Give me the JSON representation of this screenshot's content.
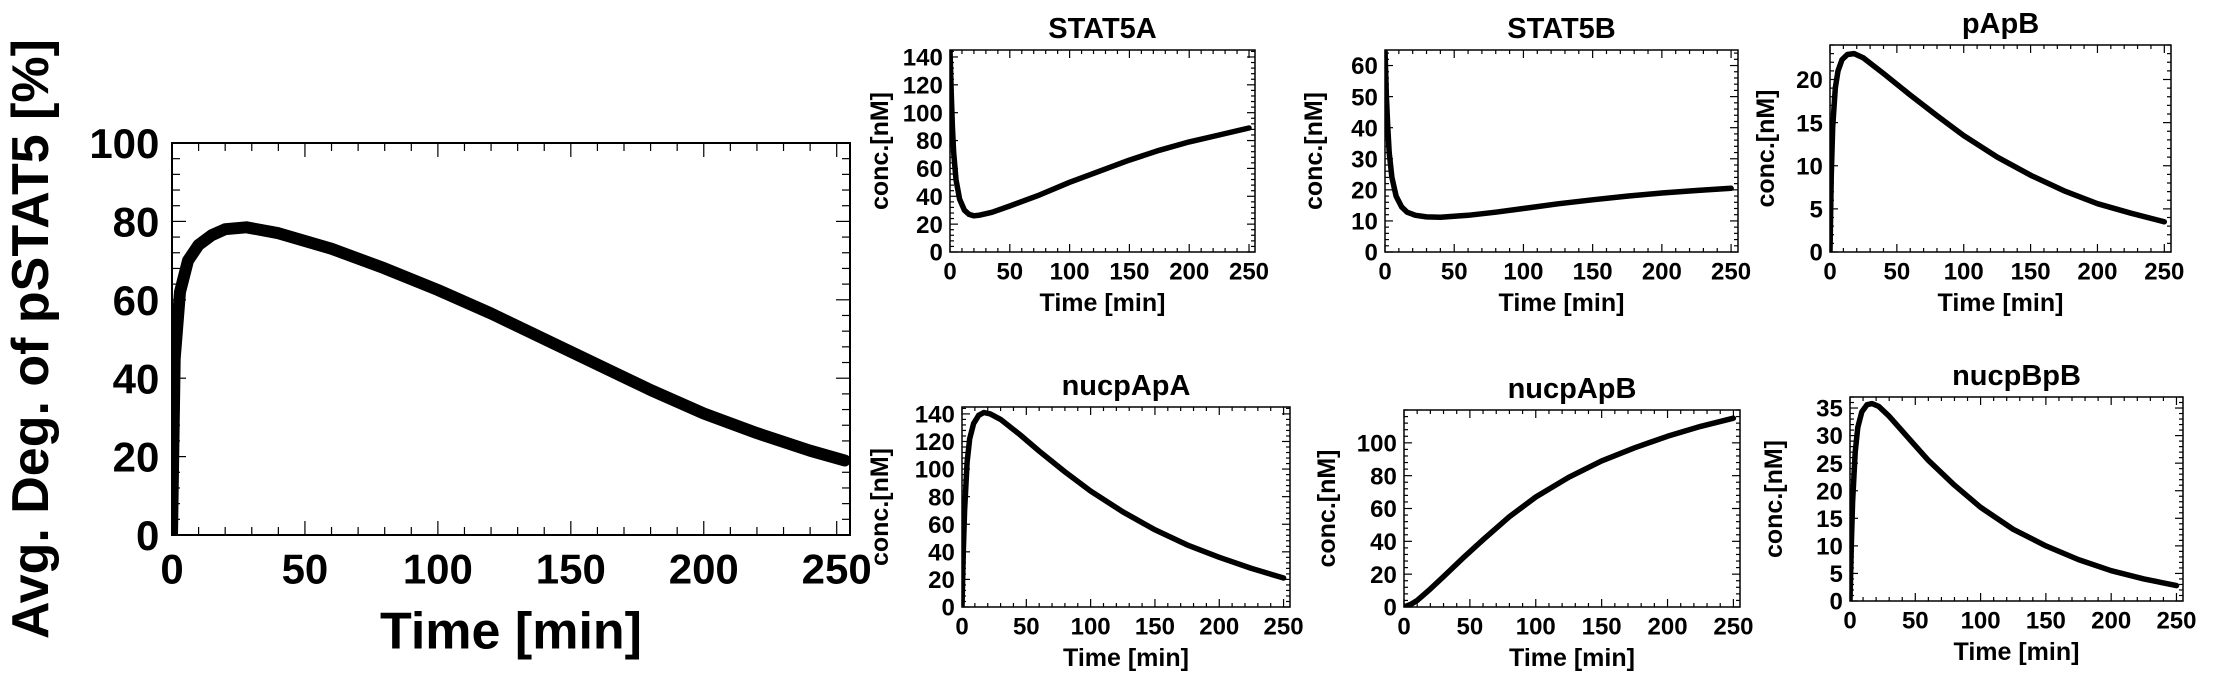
{
  "chart_data": [
    {
      "id": "main",
      "type": "line",
      "title": "",
      "xlabel": "Time [min]",
      "ylabel": "Avg. Deg. of pSTAT5 [%]",
      "xlim": [
        0,
        255
      ],
      "ylim": [
        0,
        100
      ],
      "xticks": [
        0,
        50,
        100,
        150,
        200,
        250
      ],
      "yticks": [
        0,
        20,
        40,
        60,
        80,
        100
      ],
      "series": [
        {
          "name": "",
          "x": [
            0,
            1,
            3,
            6,
            10,
            15,
            20,
            28,
            40,
            60,
            80,
            100,
            120,
            140,
            160,
            180,
            200,
            220,
            240,
            253
          ],
          "values": [
            0,
            45,
            62,
            70,
            74,
            76.5,
            78,
            78.5,
            77,
            73,
            68,
            62.5,
            56.5,
            50,
            43.5,
            37,
            31,
            26,
            21.5,
            19
          ]
        }
      ]
    },
    {
      "id": "stat5a",
      "type": "line",
      "title": "STAT5A",
      "xlabel": "Time [min]",
      "ylabel": "conc.[nM]",
      "xlim": [
        0,
        255
      ],
      "ylim": [
        0,
        145
      ],
      "xticks": [
        0,
        50,
        100,
        150,
        200,
        250
      ],
      "yticks": [
        0,
        20,
        40,
        60,
        80,
        100,
        120,
        140
      ],
      "series": [
        {
          "name": "",
          "x": [
            0,
            1,
            2,
            3,
            5,
            8,
            12,
            16,
            20,
            25,
            35,
            50,
            75,
            100,
            125,
            150,
            175,
            200,
            225,
            250
          ],
          "values": [
            145,
            115,
            90,
            72,
            52,
            38,
            30,
            27,
            26,
            26.5,
            28.5,
            33,
            41,
            50,
            58,
            66,
            73,
            79,
            84,
            89
          ]
        }
      ]
    },
    {
      "id": "stat5b",
      "type": "line",
      "title": "STAT5B",
      "xlabel": "Time [min]",
      "ylabel": "conc.[nM]",
      "xlim": [
        0,
        255
      ],
      "ylim": [
        0,
        65
      ],
      "xticks": [
        0,
        50,
        100,
        150,
        200,
        250
      ],
      "yticks": [
        0,
        10,
        20,
        30,
        40,
        50,
        60
      ],
      "series": [
        {
          "name": "",
          "x": [
            0,
            1,
            2,
            3,
            5,
            8,
            12,
            16,
            22,
            30,
            40,
            60,
            80,
            100,
            125,
            150,
            175,
            200,
            225,
            250
          ],
          "values": [
            65,
            50,
            40,
            32,
            24,
            18,
            14.5,
            12.8,
            11.8,
            11.3,
            11.2,
            11.8,
            12.8,
            14,
            15.5,
            16.8,
            18,
            19,
            19.8,
            20.5
          ]
        }
      ]
    },
    {
      "id": "papb",
      "type": "line",
      "title": "pApB",
      "xlabel": "Time [min]",
      "ylabel": "conc.[nM]",
      "xlim": [
        0,
        255
      ],
      "ylim": [
        0,
        24
      ],
      "xticks": [
        0,
        50,
        100,
        150,
        200,
        250
      ],
      "yticks": [
        0,
        5,
        10,
        15,
        20
      ],
      "series": [
        {
          "name": "",
          "x": [
            0,
            1,
            2,
            4,
            6,
            9,
            13,
            18,
            25,
            40,
            60,
            80,
            100,
            125,
            150,
            175,
            200,
            225,
            250
          ],
          "values": [
            0,
            9,
            14.5,
            19,
            21,
            22.3,
            22.9,
            23,
            22.5,
            20.7,
            18.2,
            15.8,
            13.5,
            11,
            8.9,
            7.1,
            5.6,
            4.5,
            3.5
          ]
        }
      ]
    },
    {
      "id": "nucpapa",
      "type": "line",
      "title": "nucpApA",
      "xlabel": "Time [min]",
      "ylabel": "conc.[nM]",
      "xlim": [
        0,
        255
      ],
      "ylim": [
        0,
        145
      ],
      "xticks": [
        0,
        50,
        100,
        150,
        200,
        250
      ],
      "yticks": [
        0,
        20,
        40,
        60,
        80,
        100,
        120,
        140
      ],
      "series": [
        {
          "name": "",
          "x": [
            0,
            1,
            2,
            4,
            6,
            9,
            13,
            17,
            22,
            30,
            45,
            60,
            80,
            100,
            125,
            150,
            175,
            200,
            225,
            250
          ],
          "values": [
            0,
            40,
            70,
            105,
            122,
            133,
            139,
            141,
            140,
            136,
            125,
            113,
            98,
            84,
            69,
            56,
            45,
            36,
            28,
            21
          ]
        }
      ]
    },
    {
      "id": "nucpapb",
      "type": "line",
      "title": "nucpApB",
      "xlabel": "Time [min]",
      "ylabel": "conc.[nM]",
      "xlim": [
        0,
        255
      ],
      "ylim": [
        0,
        120
      ],
      "xticks": [
        0,
        50,
        100,
        150,
        200,
        250
      ],
      "yticks": [
        0,
        20,
        40,
        60,
        80,
        100
      ],
      "series": [
        {
          "name": "",
          "x": [
            0,
            5,
            10,
            20,
            30,
            45,
            60,
            80,
            100,
            125,
            150,
            175,
            200,
            225,
            250
          ],
          "values": [
            0,
            1.5,
            4,
            11,
            18.5,
            30,
            41,
            55,
            67,
            79,
            89,
            97,
            104,
            110,
            115
          ]
        }
      ]
    },
    {
      "id": "nucpbpb",
      "type": "line",
      "title": "nucpBpB",
      "xlabel": "Time [min]",
      "ylabel": "conc.[nM]",
      "xlim": [
        0,
        255
      ],
      "ylim": [
        0,
        37
      ],
      "xticks": [
        0,
        50,
        100,
        150,
        200,
        250
      ],
      "yticks": [
        0,
        5,
        10,
        15,
        20,
        25,
        30,
        35
      ],
      "series": [
        {
          "name": "",
          "x": [
            0,
            1,
            2,
            4,
            6,
            9,
            13,
            17,
            22,
            30,
            45,
            60,
            80,
            100,
            125,
            150,
            175,
            200,
            225,
            250
          ],
          "values": [
            0,
            10,
            18,
            27,
            31.5,
            34.3,
            35.6,
            35.8,
            35.3,
            33.5,
            29.5,
            25.5,
            21,
            17,
            13,
            10,
            7.5,
            5.5,
            4,
            2.8
          ]
        }
      ]
    }
  ]
}
